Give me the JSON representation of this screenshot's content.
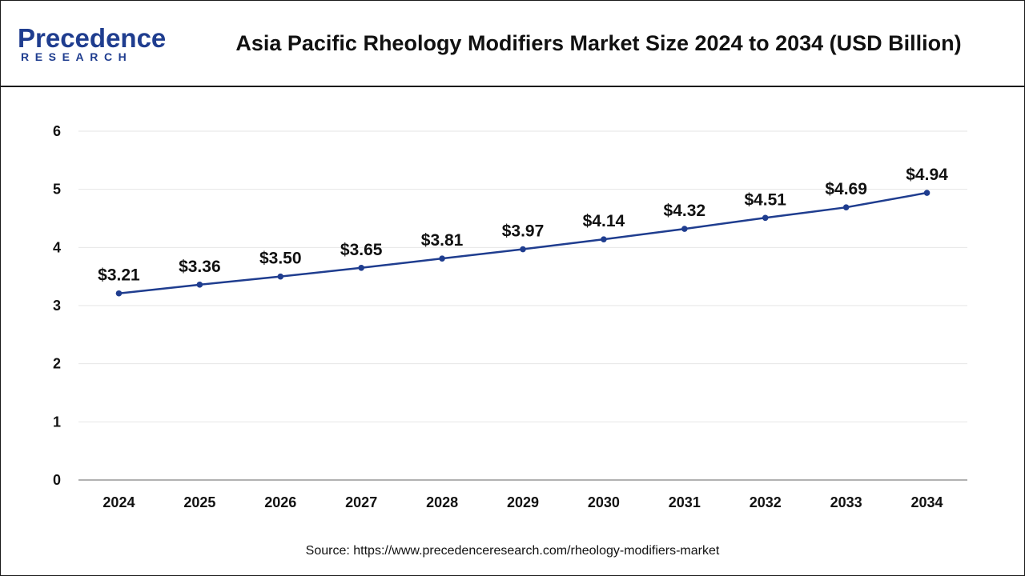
{
  "logo": {
    "main": "Precedence",
    "sub": "RESEARCH"
  },
  "chart_data": {
    "type": "line",
    "title": "Asia Pacific Rheology Modifiers Market Size 2024 to 2034 (USD Billion)",
    "xlabel": "",
    "ylabel": "",
    "categories": [
      "2024",
      "2025",
      "2026",
      "2027",
      "2028",
      "2029",
      "2030",
      "2031",
      "2032",
      "2033",
      "2034"
    ],
    "series": [
      {
        "values": [
          3.21,
          3.36,
          3.5,
          3.65,
          3.81,
          3.97,
          4.14,
          4.32,
          4.51,
          4.69,
          4.94
        ],
        "labels": [
          "$3.21",
          "$3.36",
          "$3.50",
          "$3.65",
          "$3.81",
          "$3.97",
          "$4.14",
          "$4.32",
          "$4.51",
          "$4.69",
          "$4.94"
        ]
      }
    ],
    "ylim": [
      0,
      6
    ],
    "yticks": [
      "0",
      "1",
      "2",
      "3",
      "4",
      "5",
      "6"
    ],
    "grid": true,
    "legend": "none",
    "colors": {
      "line": "#1f3d8f",
      "grid": "#e6e6e6",
      "axis": "#999999"
    }
  },
  "source": "Source: https://www.precedenceresearch.com/rheology-modifiers-market"
}
